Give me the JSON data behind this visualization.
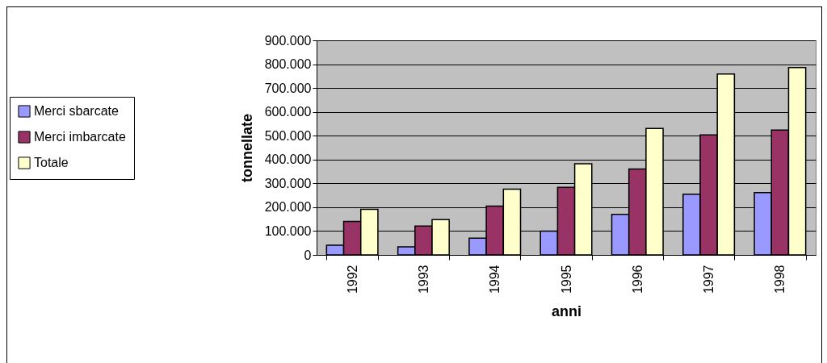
{
  "chart_data": {
    "type": "bar",
    "xlabel": "anni",
    "ylabel": "tonnellate",
    "categories": [
      "1992",
      "1993",
      "1994",
      "1995",
      "1996",
      "1997",
      "1998"
    ],
    "series": [
      {
        "name": "Merci sbarcate",
        "color": "#9999ff",
        "values": [
          41000,
          34000,
          70000,
          100000,
          170000,
          255000,
          261000
        ]
      },
      {
        "name": "Merci imbarcate",
        "color": "#993366",
        "values": [
          140000,
          121000,
          205000,
          283000,
          360000,
          503000,
          524000
        ]
      },
      {
        "name": "Totale",
        "color": "#ffffcc",
        "values": [
          191000,
          148000,
          276000,
          382000,
          530000,
          759000,
          786000
        ]
      }
    ],
    "ylim": [
      0,
      900000
    ],
    "yticks": [
      {
        "value": 0,
        "label": "0"
      },
      {
        "value": 100000,
        "label": "100.000"
      },
      {
        "value": 200000,
        "label": "200.000"
      },
      {
        "value": 300000,
        "label": "300.000"
      },
      {
        "value": 400000,
        "label": "400.000"
      },
      {
        "value": 500000,
        "label": "500.000"
      },
      {
        "value": 600000,
        "label": "600.000"
      },
      {
        "value": 700000,
        "label": "700.000"
      },
      {
        "value": 800000,
        "label": "800.000"
      },
      {
        "value": 900000,
        "label": "900.000"
      }
    ],
    "grid": "y",
    "legend": "left"
  }
}
